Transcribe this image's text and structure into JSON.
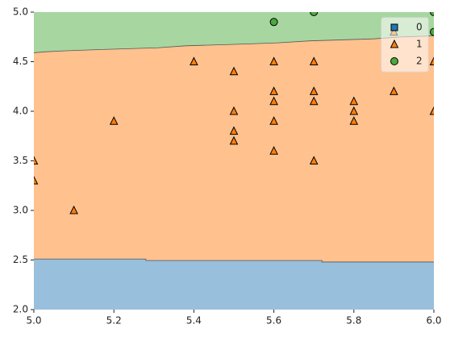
{
  "chart_data": {
    "type": "decision-regions",
    "xlim": [
      5,
      6
    ],
    "ylim": [
      2,
      5
    ],
    "xticks": [
      {
        "value": 5,
        "label": "5.0"
      },
      5.2,
      5.4,
      5.6,
      5.8,
      {
        "value": 6,
        "label": "6.0"
      }
    ],
    "yticks": [
      {
        "value": 2,
        "label": "2.0"
      },
      2.5,
      {
        "value": 3,
        "label": "3.0"
      },
      3.5,
      {
        "value": 4,
        "label": "4.0"
      },
      4.5,
      {
        "value": 5,
        "label": "5.0"
      }
    ],
    "legend": "upper right",
    "decision_boundaries": [
      {
        "x": [
          5,
          5.28,
          5.28,
          5.72,
          5.72,
          6
        ],
        "y": [
          2.51,
          2.51,
          2.495,
          2.495,
          2.48,
          2.48
        ]
      },
      {
        "x": [
          5,
          5.03,
          5.08,
          5.15,
          5.23,
          5.31,
          5.38,
          5.46,
          5.54,
          5.61,
          5.69,
          5.77,
          5.85,
          5.92,
          6
        ],
        "y": [
          4.59,
          4.6,
          4.61,
          4.62,
          4.63,
          4.64,
          4.66,
          4.67,
          4.68,
          4.69,
          4.71,
          4.72,
          4.73,
          4.75,
          4.76
        ]
      }
    ],
    "series": [
      {
        "name": "0",
        "marker": "square",
        "color": "#1f77b4",
        "region_color": "#98bfdc",
        "x": [],
        "y": []
      },
      {
        "name": "1",
        "marker": "triangle",
        "color": "#ff7f0e",
        "region_color": "#ffc28e",
        "x": [
          5.0,
          5.0,
          5.1,
          5.2,
          5.4,
          5.5,
          5.5,
          5.5,
          5.5,
          5.6,
          5.6,
          5.6,
          5.6,
          5.6,
          5.7,
          5.7,
          5.7,
          5.7,
          5.8,
          5.8,
          5.8,
          5.9,
          5.9,
          6.0,
          6.0
        ],
        "y": [
          3.5,
          3.3,
          3.0,
          3.9,
          4.5,
          4.4,
          4.0,
          3.8,
          3.7,
          4.5,
          4.2,
          4.1,
          3.9,
          3.6,
          4.5,
          4.2,
          4.1,
          3.5,
          4.1,
          4.0,
          3.9,
          4.2,
          4.8,
          4.5,
          4.0
        ]
      },
      {
        "name": "2",
        "marker": "circle",
        "color": "#4aa83c",
        "region_color": "#a8d6a0",
        "x": [
          5.6,
          5.7,
          6.0,
          6.0
        ],
        "y": [
          4.9,
          5.0,
          5.0,
          4.8
        ]
      }
    ]
  }
}
